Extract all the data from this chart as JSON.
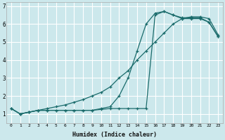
{
  "xlabel": "Humidex (Indice chaleur)",
  "bg_color": "#cce8ec",
  "grid_color": "#ffffff",
  "line_color": "#1a6b6b",
  "xlim": [
    -0.5,
    23.5
  ],
  "ylim": [
    0.5,
    7.2
  ],
  "yticks": [
    1,
    2,
    3,
    4,
    5,
    6,
    7
  ],
  "xticks": [
    0,
    1,
    2,
    3,
    4,
    5,
    6,
    7,
    8,
    9,
    10,
    11,
    12,
    13,
    14,
    15,
    16,
    17,
    18,
    19,
    20,
    21,
    22,
    23
  ],
  "line1_x": [
    0,
    1,
    2,
    3,
    4,
    5,
    6,
    7,
    8,
    9,
    10,
    11,
    12,
    13,
    14,
    15,
    16,
    17,
    18,
    19,
    20,
    21,
    22,
    23
  ],
  "line1_y": [
    1.3,
    1.0,
    1.1,
    1.2,
    1.2,
    1.2,
    1.2,
    1.2,
    1.2,
    1.2,
    1.25,
    1.3,
    1.3,
    1.3,
    1.3,
    1.3,
    6.5,
    6.7,
    6.5,
    6.3,
    6.3,
    6.3,
    6.1,
    5.3
  ],
  "line2_x": [
    0,
    1,
    2,
    3,
    4,
    5,
    6,
    7,
    8,
    9,
    10,
    11,
    12,
    13,
    14,
    15,
    16,
    17,
    18,
    19,
    20,
    21,
    22,
    23
  ],
  "line2_y": [
    1.3,
    1.0,
    1.1,
    1.2,
    1.2,
    1.2,
    1.2,
    1.2,
    1.2,
    1.2,
    1.3,
    1.4,
    2.0,
    3.0,
    4.5,
    6.0,
    6.6,
    6.7,
    6.5,
    6.35,
    6.35,
    6.35,
    6.1,
    5.3
  ],
  "line3_x": [
    0,
    1,
    2,
    3,
    4,
    5,
    6,
    7,
    8,
    9,
    10,
    11,
    12,
    13,
    14,
    15,
    16,
    17,
    18,
    19,
    20,
    21,
    22,
    23
  ],
  "line3_y": [
    1.3,
    1.0,
    1.1,
    1.2,
    1.3,
    1.4,
    1.5,
    1.65,
    1.8,
    2.0,
    2.2,
    2.5,
    3.0,
    3.4,
    4.0,
    4.5,
    5.0,
    5.5,
    6.0,
    6.3,
    6.4,
    6.4,
    6.3,
    5.4
  ]
}
